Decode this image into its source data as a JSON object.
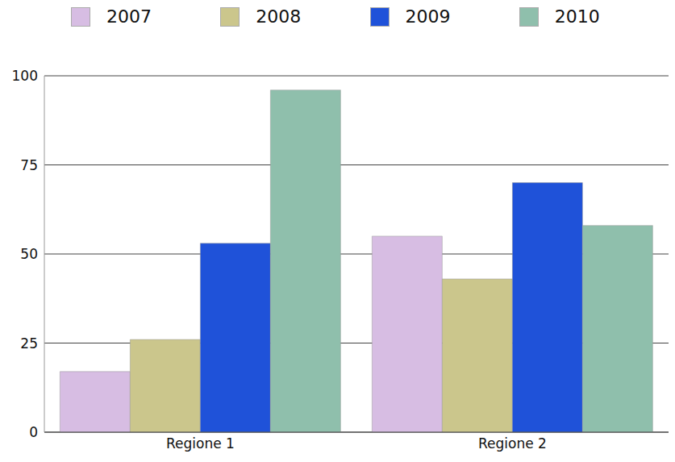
{
  "chart_data": {
    "type": "bar",
    "categories": [
      "Regione 1",
      "Regione 2"
    ],
    "series": [
      {
        "name": "2007",
        "color": "#d7bde3",
        "values": [
          17,
          55
        ]
      },
      {
        "name": "2008",
        "color": "#cbc68c",
        "values": [
          26,
          43
        ]
      },
      {
        "name": "2009",
        "color": "#1f52d9",
        "values": [
          53,
          70
        ]
      },
      {
        "name": "2010",
        "color": "#8fbfac",
        "values": [
          96,
          58
        ]
      }
    ],
    "ylim": [
      0,
      100
    ],
    "yticks": [
      0,
      25,
      50,
      75,
      100
    ],
    "grid": true,
    "legend": "top"
  }
}
